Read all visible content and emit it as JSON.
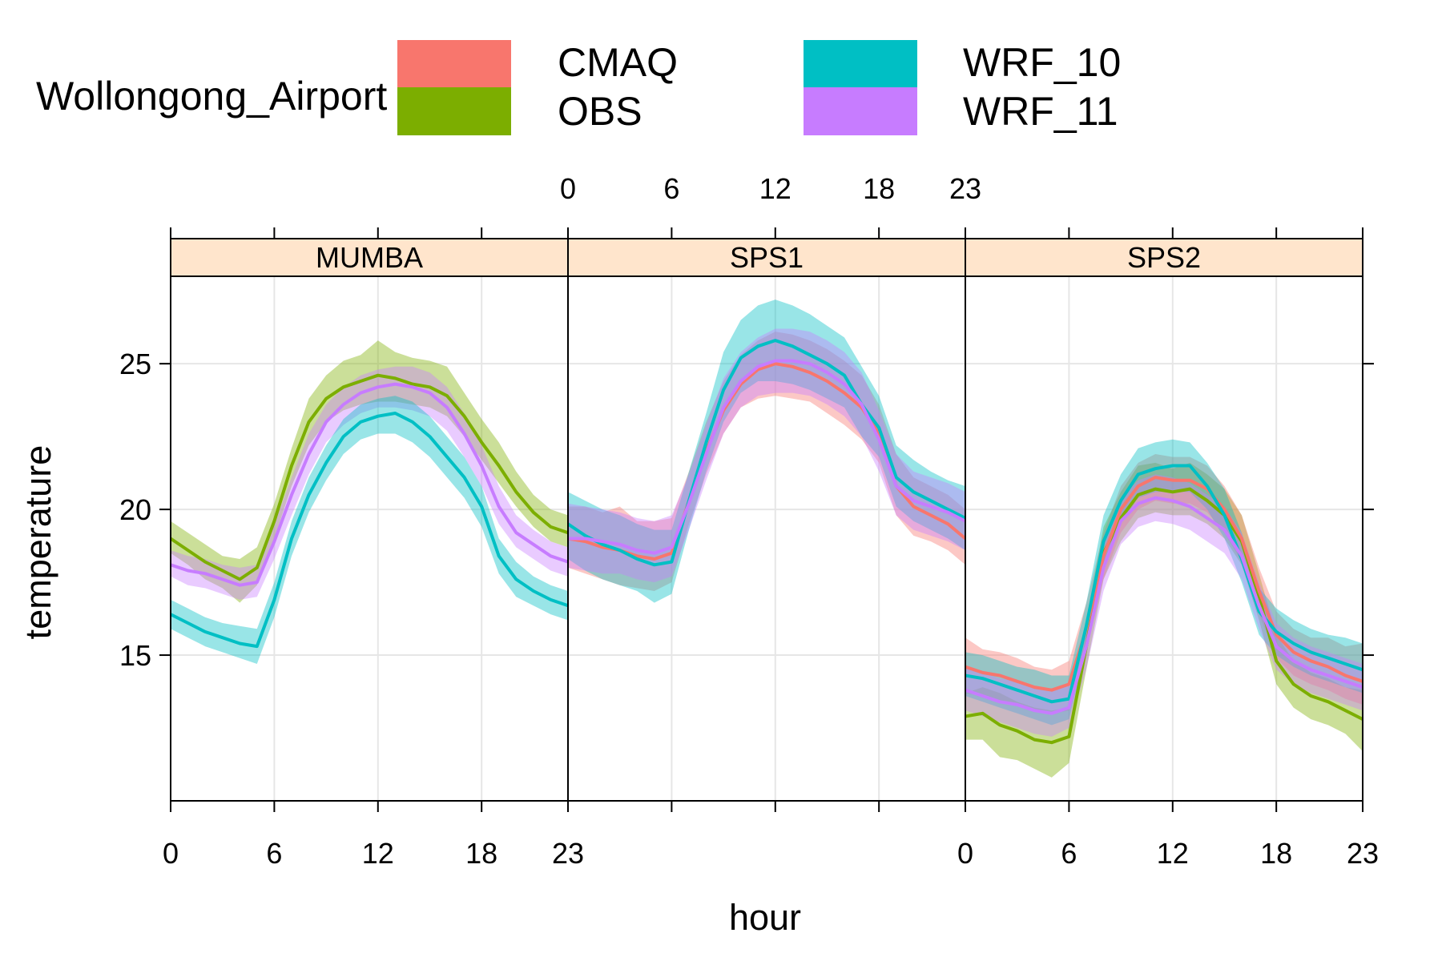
{
  "chart_data": {
    "type": "line",
    "legend": {
      "title": "Wollongong_Airport",
      "placement": "top",
      "entries": [
        {
          "name": "CMAQ",
          "color": "#F8766D"
        },
        {
          "name": "OBS",
          "color": "#7CAE00"
        },
        {
          "name": "WRF_10",
          "color": "#00BFC4"
        },
        {
          "name": "WRF_11",
          "color": "#C77CFF"
        }
      ]
    },
    "xlabel": "hour",
    "ylabel": "temperature",
    "xlim": [
      0,
      23
    ],
    "ylim": [
      10,
      28
    ],
    "x_ticks": [
      0,
      6,
      12,
      18,
      23
    ],
    "x_tick_labels": [
      "0",
      "6",
      "12",
      "18",
      "23"
    ],
    "y_ticks": [
      15,
      20,
      25
    ],
    "y_tick_labels": [
      "15",
      "20",
      "25"
    ],
    "grid": true,
    "colors": {
      "strip_background": "#FFE5CC",
      "grid": "#E6E6E6",
      "axis": "#000000"
    },
    "hours": [
      0,
      1,
      2,
      3,
      4,
      5,
      6,
      7,
      8,
      9,
      10,
      11,
      12,
      13,
      14,
      15,
      16,
      17,
      18,
      19,
      20,
      21,
      22,
      23
    ],
    "panels": [
      {
        "name": "MUMBA",
        "series": [
          {
            "name": "OBS",
            "color": "#7CAE00",
            "mean": [
              19.0,
              18.6,
              18.2,
              17.9,
              17.6,
              18.0,
              19.6,
              21.5,
              23.0,
              23.8,
              24.2,
              24.4,
              24.6,
              24.5,
              24.3,
              24.2,
              23.9,
              23.2,
              22.3,
              21.5,
              20.6,
              19.9,
              19.4,
              19.2
            ],
            "lower": [
              18.5,
              18.1,
              17.6,
              17.3,
              16.8,
              17.4,
              19.0,
              20.8,
              22.2,
              23.0,
              23.4,
              23.6,
              23.7,
              23.7,
              23.6,
              23.5,
              23.2,
              22.5,
              21.7,
              20.9,
              20.1,
              19.4,
              18.9,
              18.7
            ],
            "upper": [
              19.6,
              19.2,
              18.8,
              18.4,
              18.3,
              18.7,
              20.2,
              22.1,
              23.8,
              24.6,
              25.1,
              25.3,
              25.8,
              25.4,
              25.2,
              25.1,
              24.9,
              24.0,
              23.1,
              22.3,
              21.3,
              20.5,
              20.0,
              19.8
            ]
          },
          {
            "name": "WRF_11",
            "color": "#C77CFF",
            "mean": [
              18.1,
              17.9,
              17.8,
              17.6,
              17.4,
              17.5,
              18.9,
              20.5,
              21.9,
              23.0,
              23.6,
              24.0,
              24.2,
              24.3,
              24.2,
              24.0,
              23.5,
              22.6,
              21.5,
              20.1,
              19.2,
              18.8,
              18.4,
              18.2
            ],
            "lower": [
              17.7,
              17.4,
              17.3,
              17.1,
              16.9,
              17.0,
              18.3,
              19.8,
              21.2,
              22.3,
              22.9,
              23.3,
              23.5,
              23.5,
              23.4,
              23.2,
              22.7,
              21.8,
              20.8,
              19.5,
              18.7,
              18.3,
              17.9,
              17.7
            ],
            "upper": [
              18.6,
              18.4,
              18.3,
              18.1,
              18.0,
              18.1,
              19.5,
              21.1,
              22.6,
              23.6,
              24.2,
              24.6,
              24.8,
              24.9,
              24.9,
              24.7,
              24.2,
              23.3,
              22.2,
              20.8,
              19.8,
              19.3,
              18.9,
              18.7
            ]
          },
          {
            "name": "WRF_10",
            "color": "#00BFC4",
            "mean": [
              16.4,
              16.1,
              15.8,
              15.6,
              15.4,
              15.3,
              16.9,
              19.0,
              20.5,
              21.6,
              22.5,
              23.0,
              23.2,
              23.3,
              23.0,
              22.5,
              21.8,
              21.1,
              20.1,
              18.4,
              17.6,
              17.2,
              16.9,
              16.7
            ],
            "lower": [
              15.9,
              15.6,
              15.3,
              15.1,
              14.9,
              14.7,
              16.3,
              18.4,
              19.9,
              21.0,
              21.9,
              22.4,
              22.6,
              22.6,
              22.3,
              21.8,
              21.1,
              20.4,
              19.4,
              17.8,
              17.0,
              16.7,
              16.4,
              16.2
            ],
            "upper": [
              16.9,
              16.6,
              16.3,
              16.1,
              16.0,
              15.9,
              17.5,
              19.6,
              21.1,
              22.2,
              23.1,
              23.6,
              23.8,
              23.9,
              23.7,
              23.2,
              22.5,
              21.8,
              20.8,
              19.0,
              18.2,
              17.7,
              17.4,
              17.2
            ]
          }
        ]
      },
      {
        "name": "SPS1",
        "series": [
          {
            "name": "CMAQ",
            "color": "#F8766D",
            "mean": [
              19.0,
              18.9,
              18.7,
              18.6,
              18.4,
              18.3,
              18.5,
              20.3,
              22.0,
              23.4,
              24.3,
              24.8,
              25.0,
              24.9,
              24.7,
              24.4,
              24.0,
              23.5,
              22.6,
              20.8,
              20.1,
              19.8,
              19.5,
              19.0
            ],
            "lower": [
              18.0,
              17.8,
              17.6,
              17.4,
              17.3,
              17.2,
              17.5,
              19.5,
              21.2,
              22.6,
              23.5,
              23.8,
              23.9,
              23.8,
              23.7,
              23.3,
              22.9,
              22.4,
              21.6,
              19.8,
              19.1,
              18.9,
              18.6,
              18.1
            ],
            "upper": [
              20.1,
              20.1,
              19.9,
              20.1,
              19.6,
              19.6,
              19.7,
              21.3,
              23.0,
              24.4,
              25.3,
              25.8,
              26.1,
              26.0,
              25.8,
              25.5,
              25.1,
              24.6,
              23.6,
              21.9,
              21.1,
              20.8,
              20.5,
              20.0
            ]
          },
          {
            "name": "WRF_10",
            "color": "#00BFC4",
            "mean": [
              19.5,
              19.1,
              18.8,
              18.6,
              18.3,
              18.1,
              18.2,
              20.3,
              22.3,
              24.1,
              25.2,
              25.6,
              25.8,
              25.6,
              25.3,
              25.0,
              24.6,
              23.6,
              22.8,
              21.1,
              20.6,
              20.3,
              20.0,
              19.7
            ],
            "lower": [
              18.3,
              17.9,
              17.6,
              17.4,
              17.2,
              16.8,
              17.1,
              19.3,
              21.3,
              23.0,
              24.0,
              24.4,
              24.4,
              24.3,
              24.1,
              23.8,
              23.5,
              22.5,
              21.8,
              20.1,
              19.6,
              19.3,
              19.0,
              18.6
            ],
            "upper": [
              20.6,
              20.3,
              20.0,
              19.8,
              19.5,
              19.3,
              19.3,
              21.3,
              23.3,
              25.4,
              26.5,
              27.0,
              27.2,
              27.0,
              26.7,
              26.3,
              25.9,
              24.9,
              23.9,
              22.2,
              21.7,
              21.3,
              21.0,
              20.8
            ]
          },
          {
            "name": "WRF_11",
            "color": "#C77CFF",
            "mean": [
              19.0,
              19.0,
              18.9,
              18.8,
              18.6,
              18.5,
              18.7,
              20.2,
              21.9,
              23.5,
              24.4,
              24.9,
              25.1,
              25.1,
              25.0,
              24.7,
              24.3,
              23.6,
              22.4,
              20.8,
              20.3,
              20.1,
              19.9,
              19.6
            ],
            "lower": [
              18.0,
              17.9,
              17.8,
              17.8,
              17.6,
              17.5,
              17.7,
              19.3,
              21.0,
              22.6,
              23.5,
              23.9,
              24.0,
              24.0,
              23.9,
              23.6,
              23.2,
              22.5,
              21.3,
              19.8,
              19.3,
              19.1,
              18.9,
              18.6
            ],
            "upper": [
              20.2,
              20.1,
              20.0,
              19.9,
              19.7,
              19.6,
              19.8,
              21.2,
              22.9,
              24.5,
              25.4,
              25.9,
              26.2,
              26.2,
              26.1,
              25.8,
              25.4,
              24.7,
              23.4,
              21.9,
              21.3,
              21.1,
              20.9,
              20.6
            ]
          }
        ]
      },
      {
        "name": "SPS2",
        "series": [
          {
            "name": "OBS",
            "color": "#7CAE00",
            "mean": [
              12.9,
              13.0,
              12.6,
              12.4,
              12.1,
              12.0,
              12.2,
              15.3,
              18.5,
              19.7,
              20.5,
              20.7,
              20.6,
              20.7,
              20.3,
              19.8,
              18.9,
              17.0,
              14.8,
              14.0,
              13.6,
              13.4,
              13.1,
              12.8
            ],
            "lower": [
              12.1,
              12.1,
              11.5,
              11.4,
              11.1,
              10.8,
              11.3,
              14.5,
              17.6,
              18.9,
              19.7,
              19.9,
              19.8,
              19.8,
              19.5,
              19.0,
              18.1,
              16.2,
              14.0,
              13.2,
              12.8,
              12.6,
              12.3,
              11.7
            ],
            "upper": [
              13.7,
              13.9,
              13.7,
              13.4,
              13.2,
              13.1,
              13.2,
              16.2,
              19.4,
              20.6,
              21.5,
              21.6,
              21.4,
              21.6,
              21.2,
              20.7,
              19.8,
              17.8,
              15.7,
              14.8,
              14.4,
              14.2,
              13.9,
              13.8
            ]
          },
          {
            "name": "CMAQ",
            "color": "#F8766D",
            "mean": [
              14.6,
              14.4,
              14.3,
              14.1,
              13.9,
              13.8,
              14.0,
              15.9,
              18.4,
              20.0,
              20.8,
              21.1,
              21.0,
              21.0,
              20.7,
              20.0,
              19.0,
              17.2,
              15.7,
              15.1,
              14.8,
              14.6,
              14.3,
              14.1
            ],
            "lower": [
              13.7,
              13.6,
              13.4,
              13.3,
              13.1,
              13.0,
              13.1,
              15.1,
              17.6,
              19.2,
              20.0,
              20.3,
              20.2,
              20.2,
              19.9,
              19.2,
              18.2,
              16.4,
              14.9,
              14.3,
              14.0,
              13.8,
              13.5,
              13.3
            ],
            "upper": [
              15.6,
              15.2,
              15.1,
              14.9,
              14.6,
              14.5,
              14.8,
              16.8,
              19.2,
              20.8,
              21.6,
              21.9,
              21.8,
              21.8,
              21.5,
              20.8,
              19.8,
              18.0,
              16.5,
              15.9,
              15.6,
              15.6,
              15.3,
              15.4
            ]
          },
          {
            "name": "WRF_10",
            "color": "#00BFC4",
            "mean": [
              14.3,
              14.2,
              14.0,
              13.8,
              13.6,
              13.4,
              13.5,
              16.0,
              18.9,
              20.3,
              21.2,
              21.4,
              21.5,
              21.5,
              20.8,
              19.8,
              18.3,
              16.5,
              15.8,
              15.4,
              15.1,
              14.9,
              14.7,
              14.5
            ],
            "lower": [
              13.6,
              13.4,
              13.2,
              13.0,
              12.8,
              12.6,
              12.8,
              15.2,
              18.1,
              19.5,
              20.4,
              20.6,
              20.6,
              20.6,
              20.0,
              19.0,
              17.5,
              15.7,
              15.0,
              14.6,
              14.3,
              14.1,
              13.9,
              13.7
            ],
            "upper": [
              15.1,
              15.0,
              14.8,
              14.6,
              14.5,
              14.3,
              14.3,
              16.8,
              19.8,
              21.2,
              22.1,
              22.3,
              22.4,
              22.3,
              21.6,
              20.7,
              19.2,
              17.3,
              16.6,
              16.2,
              15.9,
              15.7,
              15.6,
              15.4
            ]
          },
          {
            "name": "WRF_11",
            "color": "#C77CFF",
            "mean": [
              13.8,
              13.6,
              13.4,
              13.3,
              13.1,
              13.0,
              13.2,
              15.3,
              18.0,
              19.6,
              20.2,
              20.4,
              20.3,
              20.1,
              19.7,
              19.3,
              18.4,
              16.7,
              15.3,
              14.8,
              14.5,
              14.3,
              14.1,
              13.9
            ],
            "lower": [
              13.1,
              12.9,
              12.7,
              12.5,
              12.3,
              12.2,
              12.5,
              14.5,
              17.2,
              18.8,
              19.4,
              19.6,
              19.5,
              19.3,
              18.9,
              18.5,
              17.6,
              15.9,
              14.5,
              14.0,
              13.7,
              13.5,
              13.3,
              13.1
            ],
            "upper": [
              14.6,
              14.4,
              14.2,
              14.1,
              13.9,
              13.8,
              14.0,
              16.1,
              18.9,
              20.4,
              21.0,
              21.2,
              21.1,
              20.9,
              20.5,
              20.1,
              19.2,
              17.5,
              16.1,
              15.6,
              15.3,
              15.1,
              14.9,
              14.7
            ]
          }
        ]
      }
    ]
  }
}
